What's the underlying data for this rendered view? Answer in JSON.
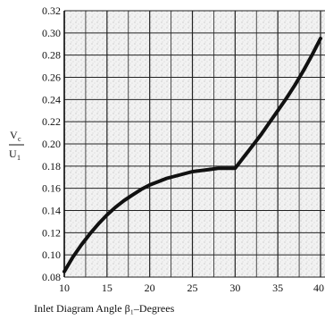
{
  "chart_data": {
    "type": "line",
    "title": "",
    "xlabel": "Inlet Diagram Angle β₁–Degrees",
    "ylabel_num": "V",
    "ylabel_num_sub": "c",
    "ylabel_den": "U",
    "ylabel_den_sub": "1",
    "xlim": [
      10,
      40
    ],
    "ylim": [
      0.08,
      0.32
    ],
    "grid": true,
    "x_ticks": [
      10,
      15,
      20,
      25,
      30,
      35,
      40
    ],
    "x_tick_labels": [
      "10",
      "15",
      "20",
      "25",
      "30",
      "35",
      "40"
    ],
    "y_ticks": [
      0.08,
      0.1,
      0.12,
      0.14,
      0.16,
      0.18,
      0.2,
      0.22,
      0.24,
      0.26,
      0.28,
      0.3,
      0.32
    ],
    "y_tick_labels": [
      "0.08",
      "0.10",
      "0.12",
      "0.14",
      "0.16",
      "0.18",
      "0.20",
      "0.22",
      "0.24",
      "0.26",
      "0.28",
      "0.30",
      "0.32"
    ],
    "series": [
      {
        "x": [
          10,
          11,
          12,
          13,
          14,
          15,
          16,
          17,
          18,
          19,
          20,
          21,
          22,
          23,
          24,
          25,
          26,
          27,
          28,
          29,
          30,
          31,
          32,
          33,
          34,
          35,
          36,
          37,
          38,
          39,
          40
        ],
        "y": [
          0.085,
          0.098,
          0.109,
          0.119,
          0.128,
          0.136,
          0.143,
          0.149,
          0.154,
          0.159,
          0.163,
          0.166,
          0.169,
          0.171,
          0.173,
          0.175,
          0.176,
          0.177,
          0.178,
          0.178,
          0.178,
          0.188,
          0.198,
          0.208,
          0.219,
          0.23,
          0.241,
          0.253,
          0.266,
          0.28,
          0.295
        ],
        "color": "#111111"
      }
    ]
  }
}
